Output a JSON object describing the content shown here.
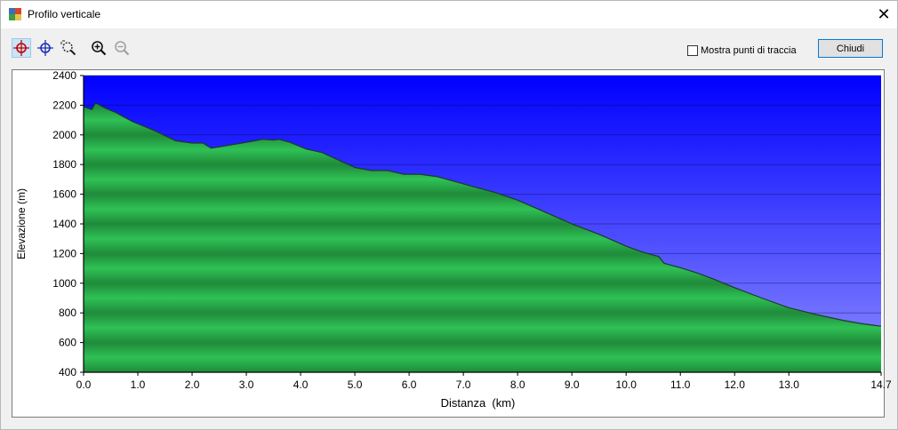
{
  "window": {
    "title": "Profilo verticale",
    "close_symbol": "✕"
  },
  "toolbar": {
    "tools": [
      {
        "name": "crosshair-red-icon",
        "active": true
      },
      {
        "name": "crosshair-blue-icon",
        "active": false
      },
      {
        "name": "zoom-area-icon",
        "active": false
      },
      {
        "name": "zoom-in-icon",
        "active": false
      },
      {
        "name": "zoom-out-icon",
        "active": false,
        "disabled": true
      }
    ],
    "show_points_label": "Mostra punti di traccia",
    "show_points_checked": false,
    "close_button_label": "Chiudi"
  },
  "chart_data": {
    "type": "area",
    "xlabel": "Distanza  (km)",
    "ylabel": "Elevazione (m)",
    "xlim": [
      0,
      14.7
    ],
    "ylim": [
      400,
      2400
    ],
    "x_ticks": [
      0,
      1,
      2,
      3,
      4,
      5,
      6,
      7,
      8,
      9,
      10,
      11,
      12,
      13,
      14.7
    ],
    "x_tick_labels": [
      "0.0",
      "1.0",
      "2.0",
      "3.0",
      "4.0",
      "5.0",
      "6.0",
      "7.0",
      "8.0",
      "9.0",
      "10.0",
      "11.0",
      "12.0",
      "13.0",
      "14.7"
    ],
    "y_ticks": [
      400,
      600,
      800,
      1000,
      1200,
      1400,
      1600,
      1800,
      2000,
      2200,
      2400
    ],
    "grid": true,
    "colors": {
      "sky_top": "#0000ff",
      "sky_bottom": "#8c8cff",
      "terrain_dark": "#1f8a3a",
      "terrain_light": "#2fc155",
      "terrain_outline": "#1d3a2a"
    },
    "series": [
      {
        "x": [
          0.0,
          0.15,
          0.22,
          0.4,
          0.6,
          0.9,
          1.3,
          1.7,
          2.0,
          2.2,
          2.35,
          2.6,
          3.0,
          3.3,
          3.5,
          3.6,
          3.8,
          4.1,
          4.4,
          4.7,
          5.0,
          5.3,
          5.6,
          5.9,
          6.2,
          6.5,
          6.8,
          7.2,
          7.6,
          8.0,
          8.5,
          9.0,
          9.5,
          10.0,
          10.3,
          10.5,
          10.6,
          10.7,
          11.0,
          11.3,
          11.6,
          12.0,
          12.5,
          13.0,
          13.5,
          14.0,
          14.3,
          14.5,
          14.7
        ],
        "y": [
          2190,
          2170,
          2215,
          2180,
          2150,
          2090,
          2030,
          1960,
          1945,
          1945,
          1910,
          1925,
          1950,
          1970,
          1965,
          1970,
          1950,
          1905,
          1880,
          1830,
          1780,
          1760,
          1760,
          1735,
          1735,
          1720,
          1690,
          1650,
          1610,
          1560,
          1480,
          1400,
          1330,
          1250,
          1210,
          1190,
          1180,
          1135,
          1105,
          1070,
          1030,
          970,
          900,
          835,
          790,
          750,
          730,
          720,
          710
        ]
      }
    ]
  }
}
